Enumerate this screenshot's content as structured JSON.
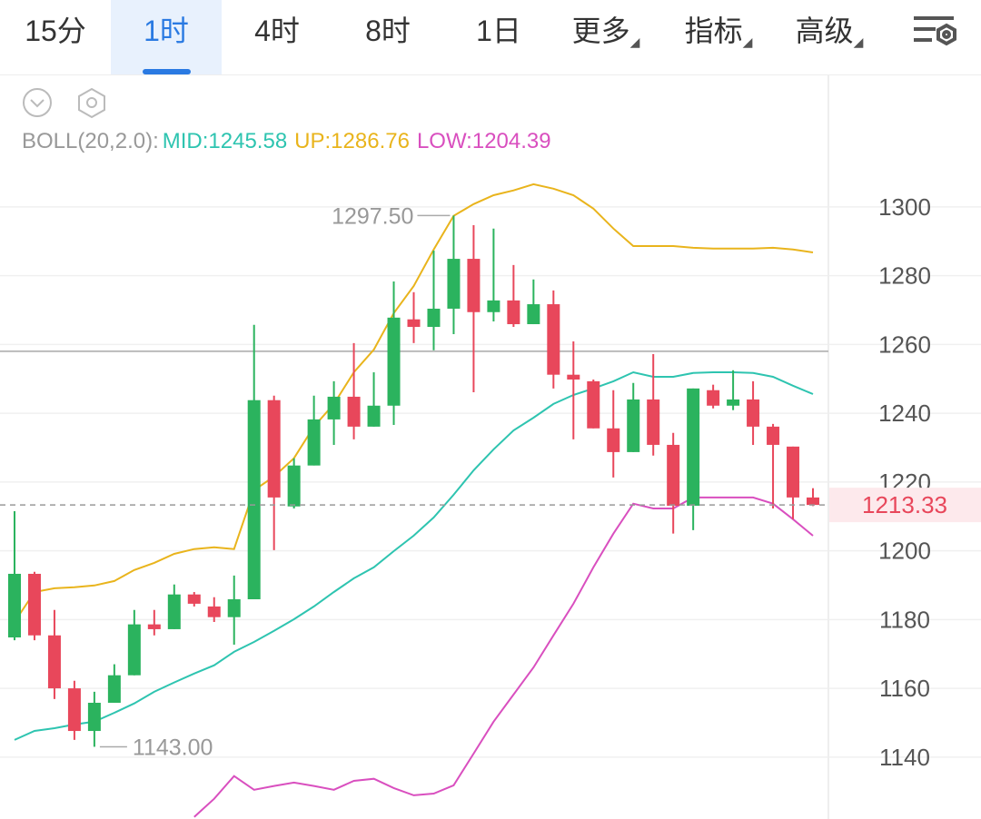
{
  "tabs": [
    "15分",
    "1时",
    "4时",
    "8时",
    "1日",
    "更多",
    "指标",
    "高级"
  ],
  "active_tab": 1,
  "chart_data": {
    "type": "candlestick",
    "indicator": "BOLL(20,2.0):",
    "open": [
      1174.8,
      1193.3,
      1175.4,
      1160,
      1147.6,
      1155.8,
      1163.8,
      1178.6,
      1177.2,
      1187.3,
      1183.8,
      1180.7,
      1185.9,
      1243.8,
      1212.9,
      1224.8,
      1238.2,
      1244.8,
      1236.1,
      1242.2,
      1267.3,
      1265.1,
      1270.4,
      1284.9,
      1269.4,
      1272.8,
      1265.9,
      1271.7,
      1251.2,
      1249.3,
      1235.6,
      1228.7,
      1244,
      1230.8,
      1213.1,
      1246.7,
      1242.2,
      1244,
      1236.1,
      1230.3,
      1215.5
    ],
    "high": [
      1211.5,
      1193.9,
      1182.8,
      1162.2,
      1159,
      1167,
      1182.8,
      1182.8,
      1190.2,
      1188,
      1186.5,
      1192.8,
      1265.7,
      1245.1,
      1226.9,
      1245.1,
      1249.3,
      1260.4,
      1251.9,
      1278.3,
      1275.2,
      1287.3,
      1297.5,
      1294.7,
      1293.7,
      1283.1,
      1278.9,
      1275.7,
      1260.9,
      1249.8,
      1246.7,
      1248.8,
      1257.2,
      1234.3,
      1247.2,
      1248.3,
      1252.5,
      1249.3,
      1236.9,
      1230.3,
      1218.2
    ],
    "low": [
      1174,
      1174,
      1156.9,
      1145,
      1143,
      1155.8,
      1163.8,
      1175.4,
      1177.2,
      1183.8,
      1179.3,
      1172.7,
      1185.9,
      1200.2,
      1212.3,
      1224.8,
      1230.8,
      1232.4,
      1236.1,
      1236.6,
      1260.4,
      1258.3,
      1263,
      1246.1,
      1266.7,
      1265.1,
      1265.9,
      1247.2,
      1232.4,
      1235.6,
      1221.3,
      1228.7,
      1227.7,
      1205,
      1206,
      1241.4,
      1240.9,
      1230.8,
      1212.3,
      1209.2,
      1213
    ],
    "close": [
      1193.3,
      1175.4,
      1160,
      1147.6,
      1155.8,
      1163.8,
      1178.6,
      1177.2,
      1187.3,
      1184.6,
      1180.7,
      1185.9,
      1243.8,
      1215.5,
      1224.8,
      1238.2,
      1244.8,
      1236.1,
      1242.2,
      1267.8,
      1265.1,
      1270.4,
      1284.9,
      1269.4,
      1272.8,
      1265.9,
      1271.7,
      1251.2,
      1249.8,
      1235.6,
      1228.7,
      1244,
      1230.8,
      1213.1,
      1247.2,
      1242.2,
      1244,
      1236.1,
      1230.8,
      1215.5,
      1213.33
    ],
    "up_color": "#2bb35e",
    "down_color": "#e8475b",
    "series": [
      {
        "name": "MID:1245.58",
        "color": "#2ec4b0",
        "values": [
          1145,
          1147.6,
          1148.4,
          1149.5,
          1150.3,
          1152.9,
          1155.6,
          1159,
          1161.7,
          1164.3,
          1166.7,
          1170.6,
          1173.5,
          1176.7,
          1180.1,
          1183.8,
          1188,
          1192,
          1195.2,
          1199.9,
          1204.4,
          1209.7,
          1216.3,
          1223.4,
          1229.5,
          1235,
          1238.7,
          1242.7,
          1245.3,
          1247.2,
          1249.3,
          1251.9,
          1250.6,
          1250.6,
          1251.7,
          1251.9,
          1251.9,
          1251.7,
          1250.6,
          1248,
          1245.58
        ]
      },
      {
        "name": "UP:1286.76",
        "color": "#e9b41c",
        "values": [
          1179.3,
          1188,
          1189.1,
          1189.4,
          1189.9,
          1191.2,
          1194.4,
          1196.5,
          1199.1,
          1200.5,
          1201,
          1200.5,
          1217.6,
          1221.6,
          1226.9,
          1236.1,
          1242.7,
          1251.9,
          1258.5,
          1269.1,
          1277,
          1287.6,
          1297.4,
          1300.8,
          1303.4,
          1304.8,
          1306.6,
          1305.3,
          1303.4,
          1299.5,
          1293.7,
          1288.6,
          1288.6,
          1288.6,
          1288.1,
          1287.9,
          1287.9,
          1287.9,
          1288.1,
          1287.6,
          1286.76
        ]
      },
      {
        "name": "LOW:1204.39",
        "color": "#d94fbf",
        "values": [
          null,
          null,
          null,
          null,
          null,
          null,
          null,
          null,
          null,
          1122.6,
          1127.9,
          1134.5,
          1130.5,
          1131.6,
          1132.6,
          1131.6,
          1130.5,
          1133.1,
          1133.7,
          1131,
          1128.9,
          1129.4,
          1131.8,
          1141,
          1150.3,
          1158.2,
          1166.1,
          1175.4,
          1184.6,
          1195.2,
          1205,
          1213.7,
          1212.3,
          1212.3,
          1215.5,
          1215.5,
          1215.5,
          1215.5,
          1213.7,
          1209.2,
          1204.39
        ]
      }
    ],
    "ylim": [
      1122,
      1310
    ],
    "yticks": [
      1140,
      1160,
      1180,
      1200,
      1220,
      1240,
      1260,
      1280,
      1300
    ],
    "grid": true,
    "reference_line": 1258,
    "last_price": {
      "value": 1213.33,
      "label": "1213.33"
    },
    "annotations": [
      {
        "label": "1297.50",
        "value": 1297.5,
        "index": 22
      },
      {
        "label": "1143.00",
        "value": 1143,
        "index": 4
      }
    ]
  }
}
